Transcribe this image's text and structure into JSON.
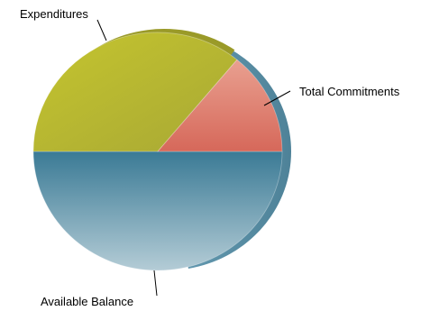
{
  "chart_data": {
    "type": "pie",
    "title": "",
    "slices": [
      {
        "label": "Available Balance",
        "value": 50,
        "color": "#3f7f9a"
      },
      {
        "label": "Expenditures",
        "value": 36,
        "color": "#b8b830"
      },
      {
        "label": "Total Commitments",
        "value": 14,
        "color": "#de7a6a"
      }
    ],
    "legend": "none",
    "labels": "outside with leader lines",
    "style": "3d-shaded"
  }
}
